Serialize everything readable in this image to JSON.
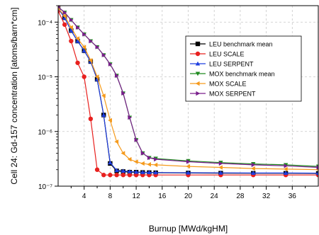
{
  "chart_data": {
    "type": "line",
    "xlabel": "Burnup [MWd/kgHM]",
    "ylabel": "Cell 24: Gd-157 concentration [atoms/barn*cm]",
    "xlim": [
      0,
      40
    ],
    "ylim": [
      1e-07,
      0.0002
    ],
    "yscale": "log",
    "grid": true,
    "legend_position": "top-right",
    "x_ticks": [
      4,
      8,
      12,
      16,
      20,
      24,
      28,
      32,
      36
    ],
    "x_tick_labels": [
      "4",
      "8",
      "12",
      "16",
      "20",
      "24",
      "28",
      "32",
      "36"
    ],
    "y_ticks": [
      1e-07,
      1e-06,
      1e-05,
      0.0001
    ],
    "y_tick_labels": [
      "10⁻⁷",
      "10⁻⁶",
      "10⁻⁵",
      "10⁻⁴"
    ],
    "series": [
      {
        "name": "LEU benchmark mean",
        "color": "#000000",
        "marker": "square",
        "x": [
          0,
          1,
          2,
          3,
          4,
          5,
          6,
          7,
          8,
          9,
          10,
          11,
          12,
          13,
          14,
          15,
          20,
          25,
          30,
          35,
          40
        ],
        "y": [
          0.00018,
          0.00012,
          7e-05,
          4.5e-05,
          3e-05,
          1.9e-05,
          9e-06,
          2e-06,
          2.6e-07,
          1.9e-07,
          1.85e-07,
          1.8e-07,
          1.8e-07,
          1.78e-07,
          1.77e-07,
          1.76e-07,
          1.74e-07,
          1.73e-07,
          1.72e-07,
          1.72e-07,
          1.71e-07
        ]
      },
      {
        "name": "LEU SCALE",
        "color": "#e8201e",
        "marker": "circle",
        "x": [
          0,
          1,
          2,
          3,
          4,
          5,
          6,
          7,
          8,
          9,
          10,
          11,
          12,
          13,
          14,
          15,
          20,
          25,
          30,
          35,
          40
        ],
        "y": [
          0.00016,
          9e-05,
          4.5e-05,
          1.8e-05,
          1e-05,
          1.7e-06,
          2e-07,
          1.6e-07,
          1.6e-07,
          1.6e-07,
          1.6e-07,
          1.6e-07,
          1.6e-07,
          1.6e-07,
          1.6e-07,
          1.6e-07,
          1.6e-07,
          1.6e-07,
          1.6e-07,
          1.6e-07,
          1.6e-07
        ]
      },
      {
        "name": "LEU SERPENT",
        "color": "#1f3fe0",
        "marker": "triangle-up",
        "x": [
          0,
          1,
          2,
          3,
          4,
          5,
          6,
          7,
          8,
          9,
          10,
          11,
          12,
          13,
          14,
          15,
          20,
          25,
          30,
          35,
          40
        ],
        "y": [
          0.00018,
          0.00012,
          7e-05,
          4.5e-05,
          3e-05,
          1.9e-05,
          9e-06,
          2e-06,
          2.7e-07,
          1.95e-07,
          1.9e-07,
          1.85e-07,
          1.82e-07,
          1.8e-07,
          1.79e-07,
          1.78e-07,
          1.76e-07,
          1.75e-07,
          1.74e-07,
          1.74e-07,
          1.73e-07
        ]
      },
      {
        "name": "MOX benchmark mean",
        "color": "#1e8a1e",
        "marker": "triangle-down",
        "x": [
          0,
          1,
          2,
          3,
          4,
          5,
          6,
          7,
          8,
          9,
          10,
          11,
          12,
          13,
          14,
          15,
          20,
          25,
          30,
          35,
          40
        ],
        "y": [
          0.00019,
          0.00015,
          0.00011,
          8e-05,
          6e-05,
          4.5e-05,
          3.5e-05,
          2.5e-05,
          1.7e-05,
          1.05e-05,
          5e-06,
          1.8e-06,
          7e-07,
          4e-07,
          3.3e-07,
          3.2e-07,
          2.9e-07,
          2.7e-07,
          2.55e-07,
          2.45e-07,
          2.3e-07
        ]
      },
      {
        "name": "MOX SCALE",
        "color": "#f59a1c",
        "marker": "triangle-left",
        "x": [
          0,
          1,
          2,
          3,
          4,
          5,
          6,
          7,
          8,
          9,
          10,
          11,
          12,
          13,
          14,
          15,
          20,
          25,
          30,
          35,
          40
        ],
        "y": [
          0.00018,
          0.00013,
          8e-05,
          5e-05,
          3.5e-05,
          2e-05,
          1e-05,
          4.5e-06,
          1.6e-06,
          6.5e-07,
          4e-07,
          3.1e-07,
          2.8e-07,
          2.6e-07,
          2.5e-07,
          2.45e-07,
          2.3e-07,
          2.2e-07,
          2.1e-07,
          2.05e-07,
          2e-07
        ]
      },
      {
        "name": "MOX SERPENT",
        "color": "#7a1f8c",
        "marker": "triangle-right",
        "x": [
          0,
          1,
          2,
          3,
          4,
          5,
          6,
          7,
          8,
          9,
          10,
          11,
          12,
          13,
          14,
          15,
          20,
          25,
          30,
          35,
          40
        ],
        "y": [
          0.00019,
          0.00015,
          0.00011,
          8e-05,
          6e-05,
          4.5e-05,
          3.5e-05,
          2.5e-05,
          1.7e-05,
          1.05e-05,
          5e-06,
          1.8e-06,
          7e-07,
          4e-07,
          3.3e-07,
          3.1e-07,
          2.8e-07,
          2.6e-07,
          2.45e-07,
          2.35e-07,
          2.2e-07
        ]
      }
    ]
  }
}
